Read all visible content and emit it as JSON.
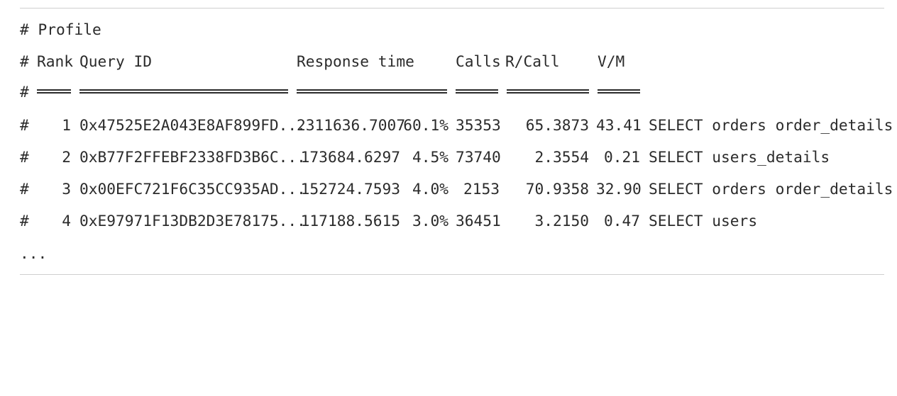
{
  "profile_title": "# Profile",
  "hash": "#",
  "header": {
    "rank": "Rank",
    "query_id": "Query ID",
    "response_time": "Response time",
    "calls": "Calls",
    "r_call": "R/Call",
    "vm": "V/M"
  },
  "rows": [
    {
      "rank": "1",
      "query_id": "0x47525E2A043E8AF899FD...",
      "response_time": "2311636.7007",
      "percent": "60.1%",
      "calls": "35353",
      "r_call": "65.3873",
      "vm": "43.41",
      "item": "SELECT orders order_details"
    },
    {
      "rank": "2",
      "query_id": "0xB77F2FFEBF2338FD3B6C...",
      "response_time": "173684.6297",
      "percent": "4.5%",
      "calls": "73740",
      "r_call": "2.3554",
      "vm": "0.21",
      "item": "SELECT users_details"
    },
    {
      "rank": "3",
      "query_id": "0x00EFC721F6C35CC935AD...",
      "response_time": "152724.7593",
      "percent": "4.0%",
      "calls": "2153",
      "r_call": "70.9358",
      "vm": "32.90",
      "item": "SELECT orders order_details"
    },
    {
      "rank": "4",
      "query_id": "0xE97971F13DB2D3E78175...",
      "response_time": "117188.5615",
      "percent": "3.0%",
      "calls": "36451",
      "r_call": "3.2150",
      "vm": "0.47",
      "item": "SELECT users"
    }
  ],
  "ellipsis": "..."
}
